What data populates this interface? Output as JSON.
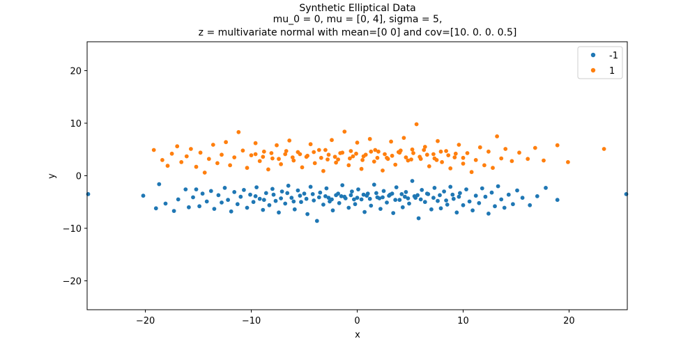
{
  "chart_data": {
    "type": "scatter",
    "title": [
      "Synthetic Elliptical Data",
      "mu_0 = 0, mu = [0, 4], sigma = 5,",
      "z = multivariate normal with mean=[0 0] and cov=[10.   0.   0.   0.5]"
    ],
    "xlabel": "x",
    "ylabel": "y",
    "xlim": [
      -25.5,
      25.5
    ],
    "ylim": [
      -25.5,
      25.5
    ],
    "xticks": [
      -20,
      -10,
      0,
      10,
      20
    ],
    "yticks": [
      -20,
      -10,
      0,
      10,
      20
    ],
    "xtick_labels": [
      "−20",
      "−10",
      "0",
      "10",
      "20"
    ],
    "ytick_labels": [
      "−20",
      "−10",
      "0",
      "10",
      "20"
    ],
    "grid": false,
    "legend_position": "top-right",
    "series": [
      {
        "name": "-1",
        "color": "#1f77b4",
        "points": [
          [
            -25.4,
            -3.5
          ],
          [
            -20.2,
            -3.8
          ],
          [
            -19.0,
            -6.2
          ],
          [
            -18.7,
            -1.6
          ],
          [
            -18.1,
            -5.3
          ],
          [
            -17.3,
            -6.7
          ],
          [
            -16.9,
            -4.5
          ],
          [
            -16.2,
            -2.6
          ],
          [
            -15.9,
            -6.0
          ],
          [
            -15.5,
            -4.1
          ],
          [
            -15.2,
            -2.6
          ],
          [
            -14.9,
            -5.8
          ],
          [
            -14.6,
            -3.4
          ],
          [
            -14.2,
            -4.9
          ],
          [
            -13.8,
            -2.9
          ],
          [
            -13.5,
            -6.3
          ],
          [
            -13.1,
            -3.7
          ],
          [
            -12.8,
            -5.1
          ],
          [
            -12.5,
            -2.3
          ],
          [
            -12.2,
            -4.6
          ],
          [
            -11.9,
            -6.8
          ],
          [
            -11.6,
            -3.1
          ],
          [
            -11.3,
            -5.4
          ],
          [
            -11.0,
            -4.0
          ],
          [
            -10.7,
            -2.7
          ],
          [
            -10.4,
            -6.1
          ],
          [
            -10.1,
            -3.6
          ],
          [
            -9.8,
            -5.0
          ],
          [
            -9.5,
            -2.2
          ],
          [
            -9.2,
            -4.4
          ],
          [
            -8.9,
            -6.5
          ],
          [
            -8.6,
            -3.3
          ],
          [
            -8.3,
            -5.6
          ],
          [
            -8.0,
            -2.5
          ],
          [
            -7.7,
            -4.8
          ],
          [
            -7.4,
            -7.0
          ],
          [
            -7.1,
            -3.0
          ],
          [
            -6.8,
            -5.3
          ],
          [
            -6.5,
            -1.9
          ],
          [
            -6.2,
            -4.2
          ],
          [
            -5.9,
            -6.4
          ],
          [
            -5.6,
            -2.8
          ],
          [
            -5.3,
            -5.0
          ],
          [
            -5.0,
            -3.4
          ],
          [
            -4.7,
            -7.3
          ],
          [
            -4.4,
            -2.1
          ],
          [
            -4.1,
            -4.7
          ],
          [
            -3.8,
            -8.6
          ],
          [
            -3.5,
            -3.2
          ],
          [
            -3.2,
            -5.5
          ],
          [
            -2.9,
            -2.4
          ],
          [
            -2.6,
            -4.9
          ],
          [
            -2.3,
            -6.6
          ],
          [
            -2.0,
            -3.7
          ],
          [
            -1.7,
            -5.2
          ],
          [
            -1.4,
            -1.8
          ],
          [
            -1.1,
            -4.3
          ],
          [
            -0.8,
            -6.1
          ],
          [
            -0.5,
            -3.0
          ],
          [
            -0.2,
            -5.4
          ],
          [
            0.1,
            -2.6
          ],
          [
            0.4,
            -4.5
          ],
          [
            0.7,
            -6.9
          ],
          [
            1.0,
            -3.4
          ],
          [
            1.3,
            -5.7
          ],
          [
            1.6,
            -1.7
          ],
          [
            1.9,
            -4.1
          ],
          [
            2.2,
            -6.3
          ],
          [
            2.5,
            -2.9
          ],
          [
            2.8,
            -5.1
          ],
          [
            3.1,
            -3.6
          ],
          [
            3.4,
            -7.1
          ],
          [
            3.7,
            -2.2
          ],
          [
            4.0,
            -4.6
          ],
          [
            4.3,
            -6.0
          ],
          [
            4.6,
            -3.1
          ],
          [
            4.9,
            -5.3
          ],
          [
            5.2,
            -1.0
          ],
          [
            5.5,
            -4.2
          ],
          [
            5.8,
            -8.1
          ],
          [
            6.1,
            -2.7
          ],
          [
            6.4,
            -5.0
          ],
          [
            6.7,
            -3.5
          ],
          [
            7.0,
            -6.4
          ],
          [
            7.3,
            -2.3
          ],
          [
            7.6,
            -4.8
          ],
          [
            7.9,
            -6.2
          ],
          [
            8.2,
            -3.0
          ],
          [
            8.5,
            -5.5
          ],
          [
            8.8,
            -2.1
          ],
          [
            9.1,
            -4.4
          ],
          [
            9.4,
            -7.0
          ],
          [
            9.7,
            -3.3
          ],
          [
            10.0,
            -5.6
          ],
          [
            10.3,
            -2.6
          ],
          [
            10.6,
            -4.9
          ],
          [
            10.9,
            -6.6
          ],
          [
            11.2,
            -3.8
          ],
          [
            11.5,
            -5.2
          ],
          [
            11.8,
            -2.4
          ],
          [
            12.1,
            -4.0
          ],
          [
            12.4,
            -7.2
          ],
          [
            12.7,
            -3.2
          ],
          [
            13.0,
            -5.8
          ],
          [
            13.3,
            -2.0
          ],
          [
            13.6,
            -4.5
          ],
          [
            13.9,
            -6.1
          ],
          [
            14.3,
            -3.6
          ],
          [
            14.7,
            -5.4
          ],
          [
            15.1,
            -2.8
          ],
          [
            15.6,
            -4.2
          ],
          [
            16.3,
            -5.6
          ],
          [
            17.0,
            -3.9
          ],
          [
            17.8,
            -2.3
          ],
          [
            18.9,
            -4.6
          ],
          [
            25.4,
            -3.5
          ],
          [
            -9.6,
            -3.9
          ],
          [
            -8.8,
            -4.6
          ],
          [
            -7.9,
            -3.6
          ],
          [
            -7.2,
            -4.3
          ],
          [
            -6.6,
            -3.3
          ],
          [
            -6.0,
            -4.9
          ],
          [
            -5.4,
            -3.8
          ],
          [
            -4.8,
            -4.4
          ],
          [
            -4.2,
            -3.5
          ],
          [
            -3.6,
            -4.1
          ],
          [
            -3.0,
            -3.9
          ],
          [
            -2.4,
            -4.5
          ],
          [
            -1.8,
            -3.4
          ],
          [
            -1.2,
            -4.0
          ],
          [
            -0.6,
            -3.7
          ],
          [
            0.0,
            -4.2
          ],
          [
            0.6,
            -3.6
          ],
          [
            1.2,
            -4.4
          ],
          [
            1.8,
            -3.3
          ],
          [
            2.4,
            -4.1
          ],
          [
            3.0,
            -3.8
          ],
          [
            3.6,
            -4.6
          ],
          [
            4.2,
            -3.5
          ],
          [
            4.8,
            -4.3
          ],
          [
            5.4,
            -3.9
          ],
          [
            6.0,
            -4.5
          ],
          [
            6.6,
            -3.4
          ],
          [
            7.2,
            -4.2
          ],
          [
            7.8,
            -3.7
          ],
          [
            8.4,
            -4.7
          ],
          [
            9.0,
            -3.6
          ],
          [
            9.6,
            -4.0
          ],
          [
            -2.7,
            -4.2
          ],
          [
            -1.5,
            -3.9
          ],
          [
            -0.3,
            -4.5
          ],
          [
            0.9,
            -3.8
          ],
          [
            2.1,
            -4.3
          ],
          [
            3.3,
            -3.4
          ],
          [
            4.5,
            -4.0
          ],
          [
            5.7,
            -3.7
          ]
        ]
      },
      {
        "name": "1",
        "color": "#ff7f0e",
        "points": [
          [
            -19.2,
            4.9
          ],
          [
            -18.4,
            3.0
          ],
          [
            -17.9,
            1.9
          ],
          [
            -17.5,
            4.2
          ],
          [
            -17.0,
            5.6
          ],
          [
            -16.6,
            2.6
          ],
          [
            -16.1,
            3.7
          ],
          [
            -15.7,
            5.1
          ],
          [
            -15.2,
            1.7
          ],
          [
            -14.8,
            4.4
          ],
          [
            -14.4,
            0.6
          ],
          [
            -14.0,
            3.2
          ],
          [
            -13.6,
            5.9
          ],
          [
            -13.2,
            2.4
          ],
          [
            -12.8,
            4.0
          ],
          [
            -12.4,
            6.4
          ],
          [
            -12.0,
            2.0
          ],
          [
            -11.6,
            3.5
          ],
          [
            -11.2,
            8.3
          ],
          [
            -10.8,
            4.8
          ],
          [
            -10.4,
            1.5
          ],
          [
            -10.0,
            3.9
          ],
          [
            -9.6,
            6.2
          ],
          [
            -9.2,
            2.8
          ],
          [
            -8.8,
            4.6
          ],
          [
            -8.4,
            1.2
          ],
          [
            -8.0,
            3.3
          ],
          [
            -7.6,
            5.8
          ],
          [
            -7.2,
            2.2
          ],
          [
            -6.8,
            4.1
          ],
          [
            -6.4,
            6.7
          ],
          [
            -6.0,
            2.9
          ],
          [
            -5.6,
            4.5
          ],
          [
            -5.2,
            1.6
          ],
          [
            -4.8,
            3.6
          ],
          [
            -4.4,
            6.0
          ],
          [
            -4.0,
            2.4
          ],
          [
            -3.6,
            4.9
          ],
          [
            -3.2,
            0.9
          ],
          [
            -2.8,
            3.1
          ],
          [
            -2.4,
            6.8
          ],
          [
            -2.0,
            2.5
          ],
          [
            -1.6,
            4.3
          ],
          [
            -1.2,
            8.4
          ],
          [
            -0.8,
            2.0
          ],
          [
            -0.4,
            3.7
          ],
          [
            0.0,
            6.3
          ],
          [
            0.4,
            1.3
          ],
          [
            0.8,
            4.0
          ],
          [
            1.2,
            7.0
          ],
          [
            1.6,
            2.7
          ],
          [
            2.0,
            4.6
          ],
          [
            2.4,
            1.0
          ],
          [
            2.8,
            3.4
          ],
          [
            3.2,
            6.5
          ],
          [
            3.6,
            2.1
          ],
          [
            4.0,
            4.4
          ],
          [
            4.4,
            7.2
          ],
          [
            4.8,
            2.9
          ],
          [
            5.2,
            5.0
          ],
          [
            5.6,
            9.8
          ],
          [
            6.0,
            3.2
          ],
          [
            6.4,
            5.5
          ],
          [
            6.8,
            1.8
          ],
          [
            7.2,
            4.1
          ],
          [
            7.6,
            6.6
          ],
          [
            8.0,
            2.6
          ],
          [
            8.4,
            4.7
          ],
          [
            8.8,
            1.4
          ],
          [
            9.2,
            3.5
          ],
          [
            9.6,
            5.9
          ],
          [
            10.0,
            2.3
          ],
          [
            10.4,
            4.3
          ],
          [
            10.8,
            0.7
          ],
          [
            11.2,
            3.0
          ],
          [
            11.6,
            5.4
          ],
          [
            12.0,
            2.0
          ],
          [
            12.4,
            4.6
          ],
          [
            12.8,
            1.5
          ],
          [
            13.2,
            7.5
          ],
          [
            13.6,
            3.3
          ],
          [
            14.0,
            5.1
          ],
          [
            14.6,
            2.8
          ],
          [
            15.3,
            4.4
          ],
          [
            16.1,
            3.2
          ],
          [
            16.8,
            5.3
          ],
          [
            17.6,
            2.9
          ],
          [
            18.9,
            5.8
          ],
          [
            19.9,
            2.6
          ],
          [
            23.3,
            5.1
          ],
          [
            -9.6,
            4.1
          ],
          [
            -8.9,
            3.6
          ],
          [
            -8.1,
            4.3
          ],
          [
            -7.4,
            3.2
          ],
          [
            -6.7,
            4.7
          ],
          [
            -6.1,
            3.5
          ],
          [
            -5.4,
            4.1
          ],
          [
            -4.7,
            3.8
          ],
          [
            -4.1,
            4.5
          ],
          [
            -3.4,
            3.4
          ],
          [
            -2.7,
            4.0
          ],
          [
            -2.1,
            3.6
          ],
          [
            -1.4,
            4.4
          ],
          [
            -0.7,
            3.3
          ],
          [
            -0.1,
            4.2
          ],
          [
            0.6,
            3.7
          ],
          [
            1.3,
            4.6
          ],
          [
            1.9,
            3.4
          ],
          [
            2.6,
            4.1
          ],
          [
            3.3,
            3.8
          ],
          [
            3.9,
            4.5
          ],
          [
            4.6,
            3.5
          ],
          [
            5.3,
            4.3
          ],
          [
            5.9,
            3.6
          ],
          [
            6.6,
            4.0
          ],
          [
            7.3,
            3.3
          ],
          [
            7.9,
            4.6
          ],
          [
            8.6,
            3.9
          ],
          [
            9.3,
            4.2
          ],
          [
            10.0,
            3.4
          ],
          [
            -3.0,
            4.9
          ],
          [
            -1.8,
            3.1
          ],
          [
            -0.6,
            4.7
          ],
          [
            0.5,
            3.0
          ],
          [
            1.7,
            4.9
          ],
          [
            2.9,
            3.2
          ],
          [
            4.1,
            4.8
          ],
          [
            5.1,
            3.1
          ],
          [
            6.3,
            4.9
          ],
          [
            7.5,
            3.0
          ]
        ]
      }
    ]
  }
}
